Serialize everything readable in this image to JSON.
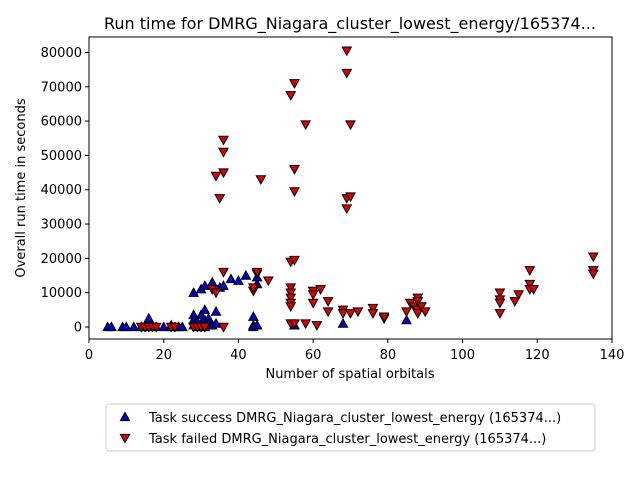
{
  "chart_data": {
    "type": "scatter",
    "title": "Run time for DMRG_Niagara_cluster_lowest_energy/165374...",
    "xlabel": "Number of spatial orbitals",
    "ylabel": "Overall run time in seconds",
    "xlim": [
      0,
      140
    ],
    "ylim": [
      -3500,
      84500
    ],
    "xticks": [
      0,
      20,
      40,
      60,
      80,
      100,
      120,
      140
    ],
    "yticks": [
      0,
      10000,
      20000,
      30000,
      40000,
      50000,
      60000,
      70000,
      80000
    ],
    "grid": false,
    "legend_position": "bottom-center (below plot)",
    "series": [
      {
        "name": "Task success DMRG_Niagara_cluster_lowest_energy (165374...)",
        "marker": "triangle-up",
        "color": "#0000cc",
        "x": [
          5,
          6,
          9,
          10,
          12,
          14,
          15,
          16,
          16,
          18,
          20,
          22,
          22,
          23,
          24,
          25,
          28,
          28,
          28,
          28,
          29,
          29,
          29,
          30,
          30,
          30,
          31,
          31,
          31,
          31,
          32,
          32,
          33,
          33,
          34,
          34,
          35,
          36,
          38,
          40,
          42,
          44,
          44,
          44,
          45,
          45,
          45,
          55,
          68,
          85
        ],
        "y": [
          0,
          0,
          0,
          0,
          0,
          0,
          0,
          2500,
          0,
          0,
          0,
          0,
          500,
          0,
          0,
          0,
          10000,
          3500,
          2000,
          500,
          0,
          1500,
          0,
          11000,
          3500,
          1000,
          0,
          12000,
          5000,
          2000,
          2500,
          1000,
          13000,
          500,
          4500,
          1000,
          11500,
          12000,
          14000,
          13500,
          15000,
          3000,
          500,
          0,
          12500,
          14500,
          500,
          500,
          1000,
          2000
        ]
      },
      {
        "name": "Task failed DMRG_Niagara_cluster_lowest_energy (165374...)",
        "marker": "triangle-down",
        "color": "#dd0000",
        "x": [
          14,
          15,
          16,
          17,
          18,
          22,
          23,
          28,
          29,
          30,
          31,
          33,
          34,
          34,
          35,
          36,
          36,
          36,
          36,
          36,
          44,
          44,
          45,
          45,
          46,
          48,
          54,
          54,
          54,
          54,
          54,
          54,
          54,
          54,
          55,
          55,
          55,
          55,
          55,
          58,
          58,
          60,
          60,
          60,
          61,
          62,
          64,
          64,
          68,
          68,
          69,
          69,
          69,
          69,
          70,
          70,
          70,
          72,
          76,
          76,
          79,
          79,
          85,
          86,
          87,
          88,
          88,
          88,
          88,
          89,
          90,
          110,
          110,
          110,
          110,
          114,
          115,
          118,
          118,
          118,
          119,
          135,
          135,
          135
        ],
        "y": [
          0,
          0,
          0,
          0,
          0,
          0,
          0,
          0,
          0,
          0,
          0,
          11000,
          10000,
          44000,
          37500,
          16000,
          45000,
          51000,
          54500,
          0,
          10500,
          11500,
          15500,
          16000,
          43000,
          13500,
          67500,
          19000,
          11500,
          10000,
          8500,
          7000,
          6000,
          1000,
          71000,
          46000,
          39500,
          19500,
          1000,
          59000,
          1000,
          10500,
          9500,
          7000,
          500,
          11000,
          7500,
          4500,
          5000,
          4000,
          74000,
          80500,
          37500,
          34500,
          59000,
          38000,
          4000,
          4500,
          5500,
          4000,
          2500,
          3000,
          4500,
          7000,
          6000,
          8500,
          7500,
          5000,
          4000,
          6000,
          4500,
          10000,
          8000,
          7000,
          4000,
          7500,
          9500,
          16500,
          12500,
          11000,
          11000,
          20500,
          16500,
          15500
        ]
      }
    ]
  }
}
